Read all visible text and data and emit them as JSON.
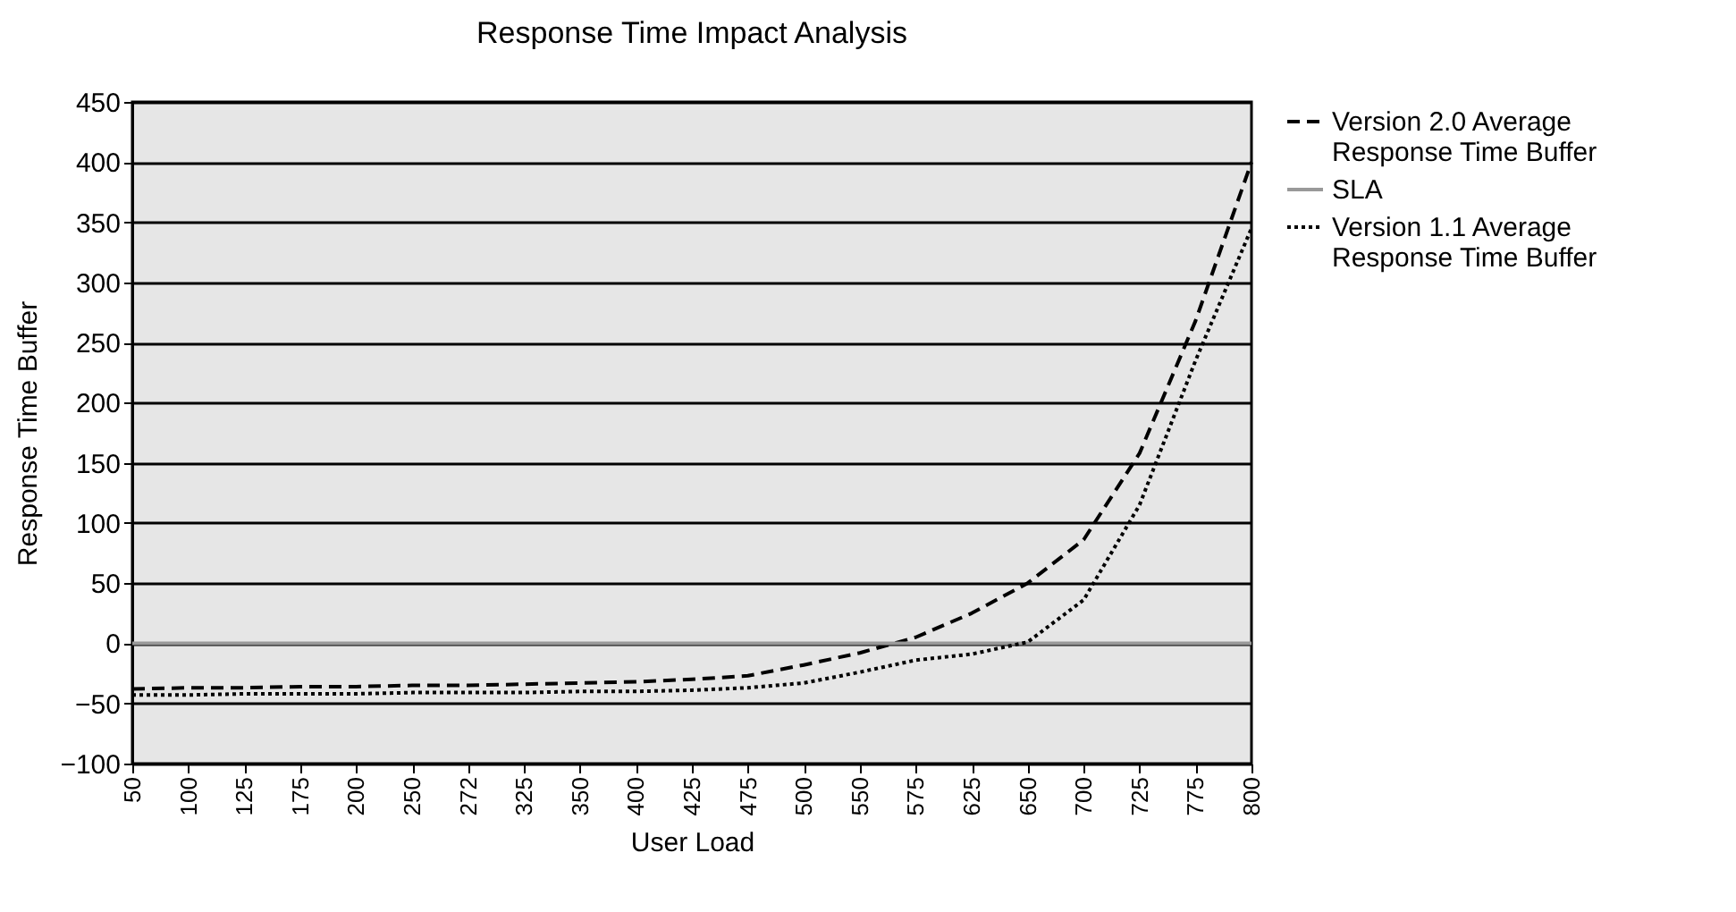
{
  "chart_data": {
    "type": "line",
    "title": "Response Time Impact Analysis",
    "xlabel": "User Load",
    "ylabel": "Response Time Buffer",
    "categories": [
      "50",
      "100",
      "125",
      "175",
      "200",
      "250",
      "272",
      "325",
      "350",
      "400",
      "425",
      "475",
      "500",
      "550",
      "575",
      "625",
      "650",
      "700",
      "725",
      "775",
      "800"
    ],
    "series": [
      {
        "name": "Version 2.0 Average Response Time Buffer",
        "color": "#000000",
        "line_style": "dashed",
        "values": [
          -38,
          -37,
          -37,
          -36,
          -36,
          -35,
          -35,
          -34,
          -33,
          -32,
          -30,
          -27,
          -18,
          -8,
          5,
          25,
          50,
          86,
          158,
          268,
          400
        ]
      },
      {
        "name": "SLA",
        "color": "#999999",
        "line_style": "solid",
        "values": [
          0,
          0,
          0,
          0,
          0,
          0,
          0,
          0,
          0,
          0,
          0,
          0,
          0,
          0,
          0,
          0,
          0,
          0,
          0,
          0,
          0
        ]
      },
      {
        "name": "Version 1.1 Average Response Time Buffer",
        "color": "#000000",
        "line_style": "dotted",
        "values": [
          -43,
          -43,
          -42,
          -42,
          -42,
          -41,
          -41,
          -41,
          -40,
          -40,
          -39,
          -37,
          -33,
          -24,
          -14,
          -9,
          1,
          36,
          115,
          235,
          345
        ]
      }
    ],
    "ylim": [
      -100,
      450
    ],
    "yticks": [
      -100,
      -50,
      0,
      50,
      100,
      150,
      200,
      250,
      300,
      350,
      400,
      450
    ],
    "grid": "y",
    "legend": "right"
  }
}
